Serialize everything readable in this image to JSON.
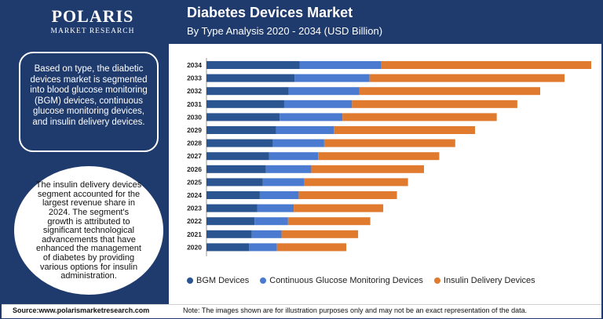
{
  "brand": {
    "name": "POLARIS",
    "tagline": "MARKET RESEARCH"
  },
  "header": {
    "title": "Diabetes Devices Market",
    "subtitle": "By Type Analysis 2020 - 2034 (USD Billion)"
  },
  "panel": {
    "text1": "Based on type, the diabetic devices market is segmented into blood glucose monitoring (BGM) devices, continuous glucose monitoring devices, and insulin delivery devices.",
    "text2": "The insulin delivery devices segment accounted for the largest revenue share in 2024. The segment's growth is attributed to significant technological advancements that have enhanced the management of diabetes by providing various options for insulin administration."
  },
  "footer": {
    "source": "Source:www.polarismarketresearch.com",
    "note": "Note: The images shown are for illustration purposes only and may not be an exact representation of the data."
  },
  "colors": {
    "bgm": "#2a5590",
    "cgm": "#4a7bd0",
    "insulin": "#e07a2f"
  },
  "chart_data": {
    "type": "bar",
    "orientation": "horizontal",
    "stacked": true,
    "title": "Diabetes Devices Market",
    "subtitle": "By Type Analysis 2020 - 2034 (USD Billion)",
    "categories": [
      "2034",
      "2033",
      "2032",
      "2031",
      "2030",
      "2029",
      "2028",
      "2027",
      "2026",
      "2025",
      "2024",
      "2023",
      "2022",
      "2021",
      "2020"
    ],
    "series": [
      {
        "name": "BGM Devices",
        "color": "#2a5590",
        "values": [
          24.5,
          23.1,
          21.6,
          20.4,
          19.2,
          18.3,
          17.4,
          16.4,
          15.6,
          14.8,
          14.0,
          13.3,
          12.6,
          11.9,
          11.2
        ]
      },
      {
        "name": "Continuous Glucose Monitoring Devices",
        "color": "#4a7bd0",
        "values": [
          21.4,
          19.7,
          18.5,
          17.8,
          16.5,
          15.1,
          13.5,
          12.9,
          11.9,
          10.9,
          10.2,
          9.6,
          8.8,
          7.8,
          7.3
        ]
      },
      {
        "name": "Insulin Delivery Devices",
        "color": "#e07a2f",
        "values": [
          55.1,
          51.2,
          47.5,
          43.4,
          40.5,
          37.1,
          34.4,
          31.8,
          29.6,
          27.2,
          25.8,
          23.5,
          21.6,
          20.1,
          18.2
        ]
      }
    ],
    "xlim": [
      0,
      101
    ],
    "legend": "bottom"
  }
}
